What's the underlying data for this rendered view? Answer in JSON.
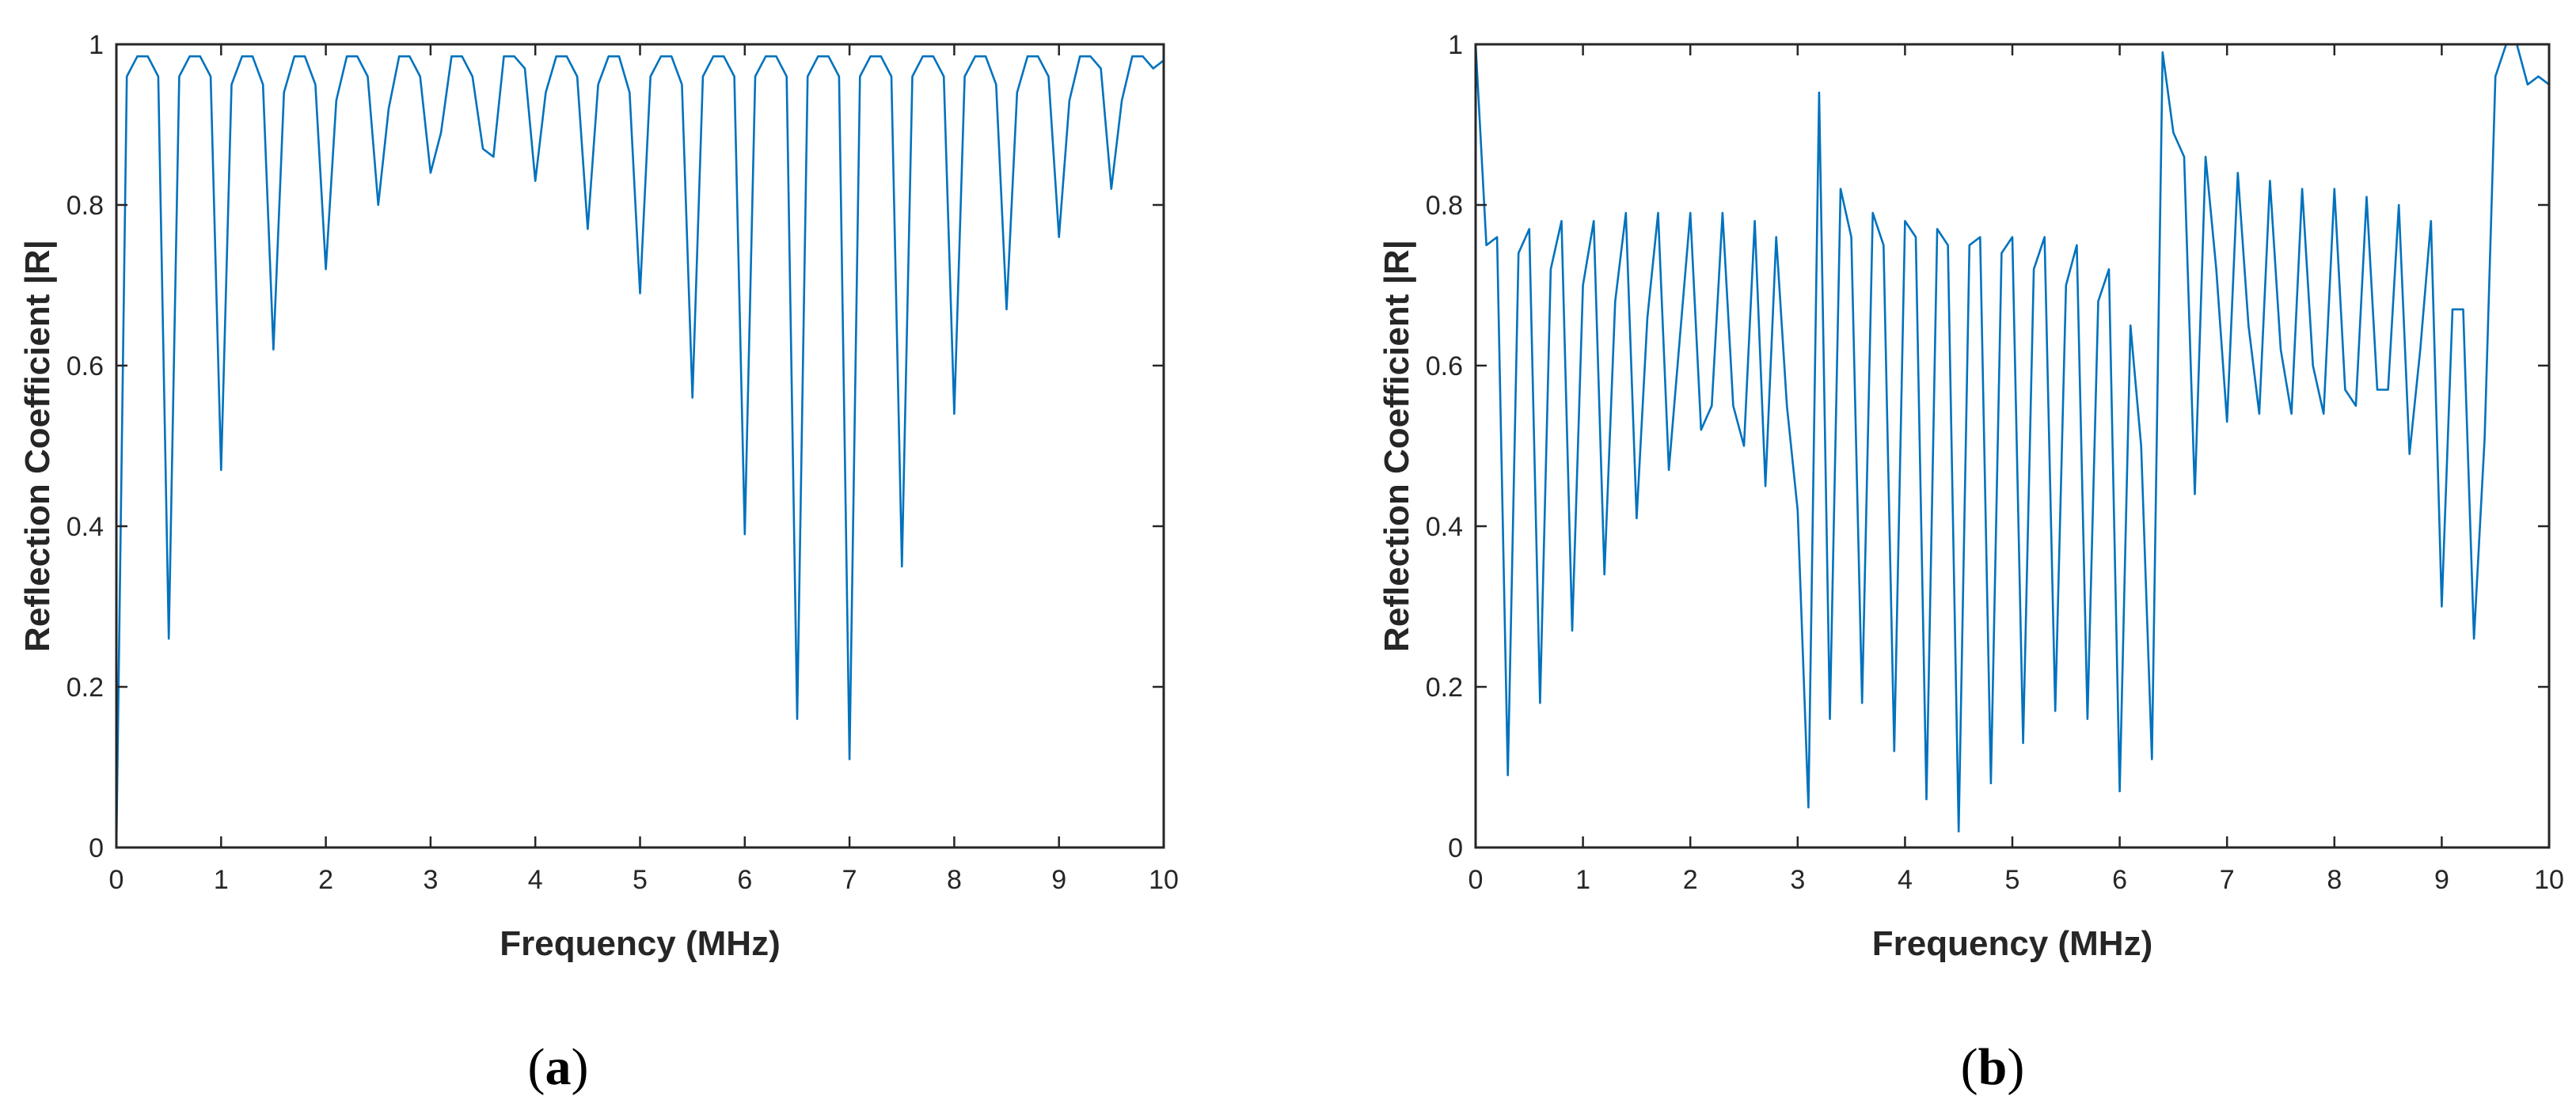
{
  "colors": {
    "line": "#0072BD",
    "axes": "#262626",
    "background": "#ffffff"
  },
  "chart_data": [
    {
      "panel": "a",
      "type": "line",
      "xlabel": "Frequency (MHz)",
      "ylabel": "Reflection Coefficient |R|",
      "xlim": [
        0,
        10
      ],
      "ylim": [
        0,
        1
      ],
      "xticks": [
        0,
        1,
        2,
        3,
        4,
        5,
        6,
        7,
        8,
        9,
        10
      ],
      "yticks": [
        0,
        0.2,
        0.4,
        0.6,
        0.8,
        1
      ],
      "ytick_labels": [
        "0",
        "0.2",
        "0.4",
        "0.6",
        "0.8",
        "1"
      ],
      "grid": false,
      "box": true,
      "x": [
        0,
        0.1,
        0.2,
        0.3,
        0.4,
        0.5,
        0.6,
        0.7,
        0.8,
        0.9,
        1.0,
        1.1,
        1.2,
        1.3,
        1.4,
        1.5,
        1.6,
        1.7,
        1.8,
        1.9,
        2.0,
        2.1,
        2.2,
        2.3,
        2.4,
        2.5,
        2.6,
        2.7,
        2.8,
        2.9,
        3.0,
        3.1,
        3.2,
        3.3,
        3.4,
        3.5,
        3.6,
        3.7,
        3.8,
        3.9,
        4.0,
        4.1,
        4.2,
        4.3,
        4.4,
        4.5,
        4.6,
        4.7,
        4.8,
        4.9,
        5.0,
        5.1,
        5.2,
        5.3,
        5.4,
        5.5,
        5.6,
        5.7,
        5.8,
        5.9,
        6.0,
        6.1,
        6.2,
        6.3,
        6.4,
        6.5,
        6.6,
        6.7,
        6.8,
        6.9,
        7.0,
        7.1,
        7.2,
        7.3,
        7.4,
        7.5,
        7.6,
        7.7,
        7.8,
        7.9,
        8.0,
        8.1,
        8.2,
        8.3,
        8.4,
        8.5,
        8.6,
        8.7,
        8.8,
        8.9,
        9.0,
        9.1,
        9.2,
        9.3,
        9.4,
        9.5,
        9.6,
        9.7,
        9.8,
        9.9,
        10.0
      ],
      "y": [
        0.0,
        0.96,
        0.985,
        0.985,
        0.96,
        0.26,
        0.96,
        0.985,
        0.985,
        0.96,
        0.47,
        0.95,
        0.985,
        0.985,
        0.95,
        0.62,
        0.94,
        0.985,
        0.985,
        0.95,
        0.72,
        0.93,
        0.985,
        0.985,
        0.96,
        0.8,
        0.92,
        0.985,
        0.985,
        0.96,
        0.84,
        0.89,
        0.985,
        0.985,
        0.96,
        0.87,
        0.86,
        0.985,
        0.985,
        0.97,
        0.83,
        0.94,
        0.985,
        0.985,
        0.96,
        0.77,
        0.95,
        0.985,
        0.985,
        0.94,
        0.69,
        0.96,
        0.985,
        0.985,
        0.95,
        0.56,
        0.96,
        0.985,
        0.985,
        0.96,
        0.39,
        0.96,
        0.985,
        0.985,
        0.96,
        0.16,
        0.96,
        0.985,
        0.985,
        0.96,
        0.11,
        0.96,
        0.985,
        0.985,
        0.96,
        0.35,
        0.96,
        0.985,
        0.985,
        0.96,
        0.54,
        0.96,
        0.985,
        0.985,
        0.95,
        0.67,
        0.94,
        0.985,
        0.985,
        0.96,
        0.76,
        0.93,
        0.985,
        0.985,
        0.97,
        0.82,
        0.93,
        0.985,
        0.985,
        0.97,
        0.98
      ]
    },
    {
      "panel": "b",
      "type": "line",
      "xlabel": "Frequency (MHz)",
      "ylabel": "Reflection Coefficient |R|",
      "xlim": [
        0,
        10
      ],
      "ylim": [
        0,
        1
      ],
      "xticks": [
        0,
        1,
        2,
        3,
        4,
        5,
        6,
        7,
        8,
        9,
        10
      ],
      "yticks": [
        0,
        0.2,
        0.4,
        0.6,
        0.8,
        1
      ],
      "ytick_labels": [
        "0",
        "0.2",
        "0.4",
        "0.6",
        "0.8",
        "1"
      ],
      "grid": false,
      "box": true,
      "x": [
        0,
        0.1,
        0.2,
        0.3,
        0.4,
        0.5,
        0.6,
        0.7,
        0.8,
        0.9,
        1.0,
        1.1,
        1.2,
        1.3,
        1.4,
        1.5,
        1.6,
        1.7,
        1.8,
        1.9,
        2.0,
        2.1,
        2.2,
        2.3,
        2.4,
        2.5,
        2.6,
        2.7,
        2.8,
        2.9,
        3.0,
        3.1,
        3.2,
        3.3,
        3.4,
        3.5,
        3.6,
        3.7,
        3.8,
        3.9,
        4.0,
        4.1,
        4.2,
        4.3,
        4.4,
        4.5,
        4.6,
        4.7,
        4.8,
        4.9,
        5.0,
        5.1,
        5.2,
        5.3,
        5.4,
        5.5,
        5.6,
        5.7,
        5.8,
        5.9,
        6.0,
        6.1,
        6.2,
        6.3,
        6.4,
        6.5,
        6.6,
        6.7,
        6.8,
        6.9,
        7.0,
        7.1,
        7.2,
        7.3,
        7.4,
        7.5,
        7.6,
        7.7,
        7.8,
        7.9,
        8.0,
        8.1,
        8.2,
        8.3,
        8.4,
        8.5,
        8.6,
        8.7,
        8.8,
        8.9,
        9.0,
        9.1,
        9.2,
        9.3,
        9.4,
        9.5,
        9.6,
        9.7,
        9.8,
        9.9,
        10.0
      ],
      "y": [
        1.0,
        0.75,
        0.76,
        0.09,
        0.74,
        0.77,
        0.18,
        0.72,
        0.78,
        0.27,
        0.7,
        0.78,
        0.34,
        0.68,
        0.79,
        0.41,
        0.66,
        0.79,
        0.47,
        0.63,
        0.79,
        0.52,
        0.55,
        0.79,
        0.55,
        0.5,
        0.78,
        0.45,
        0.76,
        0.55,
        0.42,
        0.05,
        0.94,
        0.16,
        0.82,
        0.76,
        0.18,
        0.79,
        0.75,
        0.12,
        0.78,
        0.76,
        0.06,
        0.77,
        0.75,
        0.02,
        0.75,
        0.76,
        0.08,
        0.74,
        0.76,
        0.13,
        0.72,
        0.76,
        0.17,
        0.7,
        0.75,
        0.16,
        0.68,
        0.72,
        0.07,
        0.65,
        0.5,
        0.11,
        0.99,
        0.89,
        0.86,
        0.44,
        0.86,
        0.72,
        0.53,
        0.84,
        0.65,
        0.54,
        0.83,
        0.62,
        0.54,
        0.82,
        0.6,
        0.54,
        0.82,
        0.57,
        0.55,
        0.81,
        0.57,
        0.57,
        0.8,
        0.49,
        0.62,
        0.78,
        0.3,
        0.67,
        0.67,
        0.26,
        0.51,
        0.96,
        1.0,
        1.0,
        0.95,
        0.96,
        0.95
      ]
    }
  ],
  "panel_labels": [
    {
      "open": "(",
      "letter": "a",
      "close": ")"
    },
    {
      "open": "(",
      "letter": "b",
      "close": ")"
    }
  ]
}
